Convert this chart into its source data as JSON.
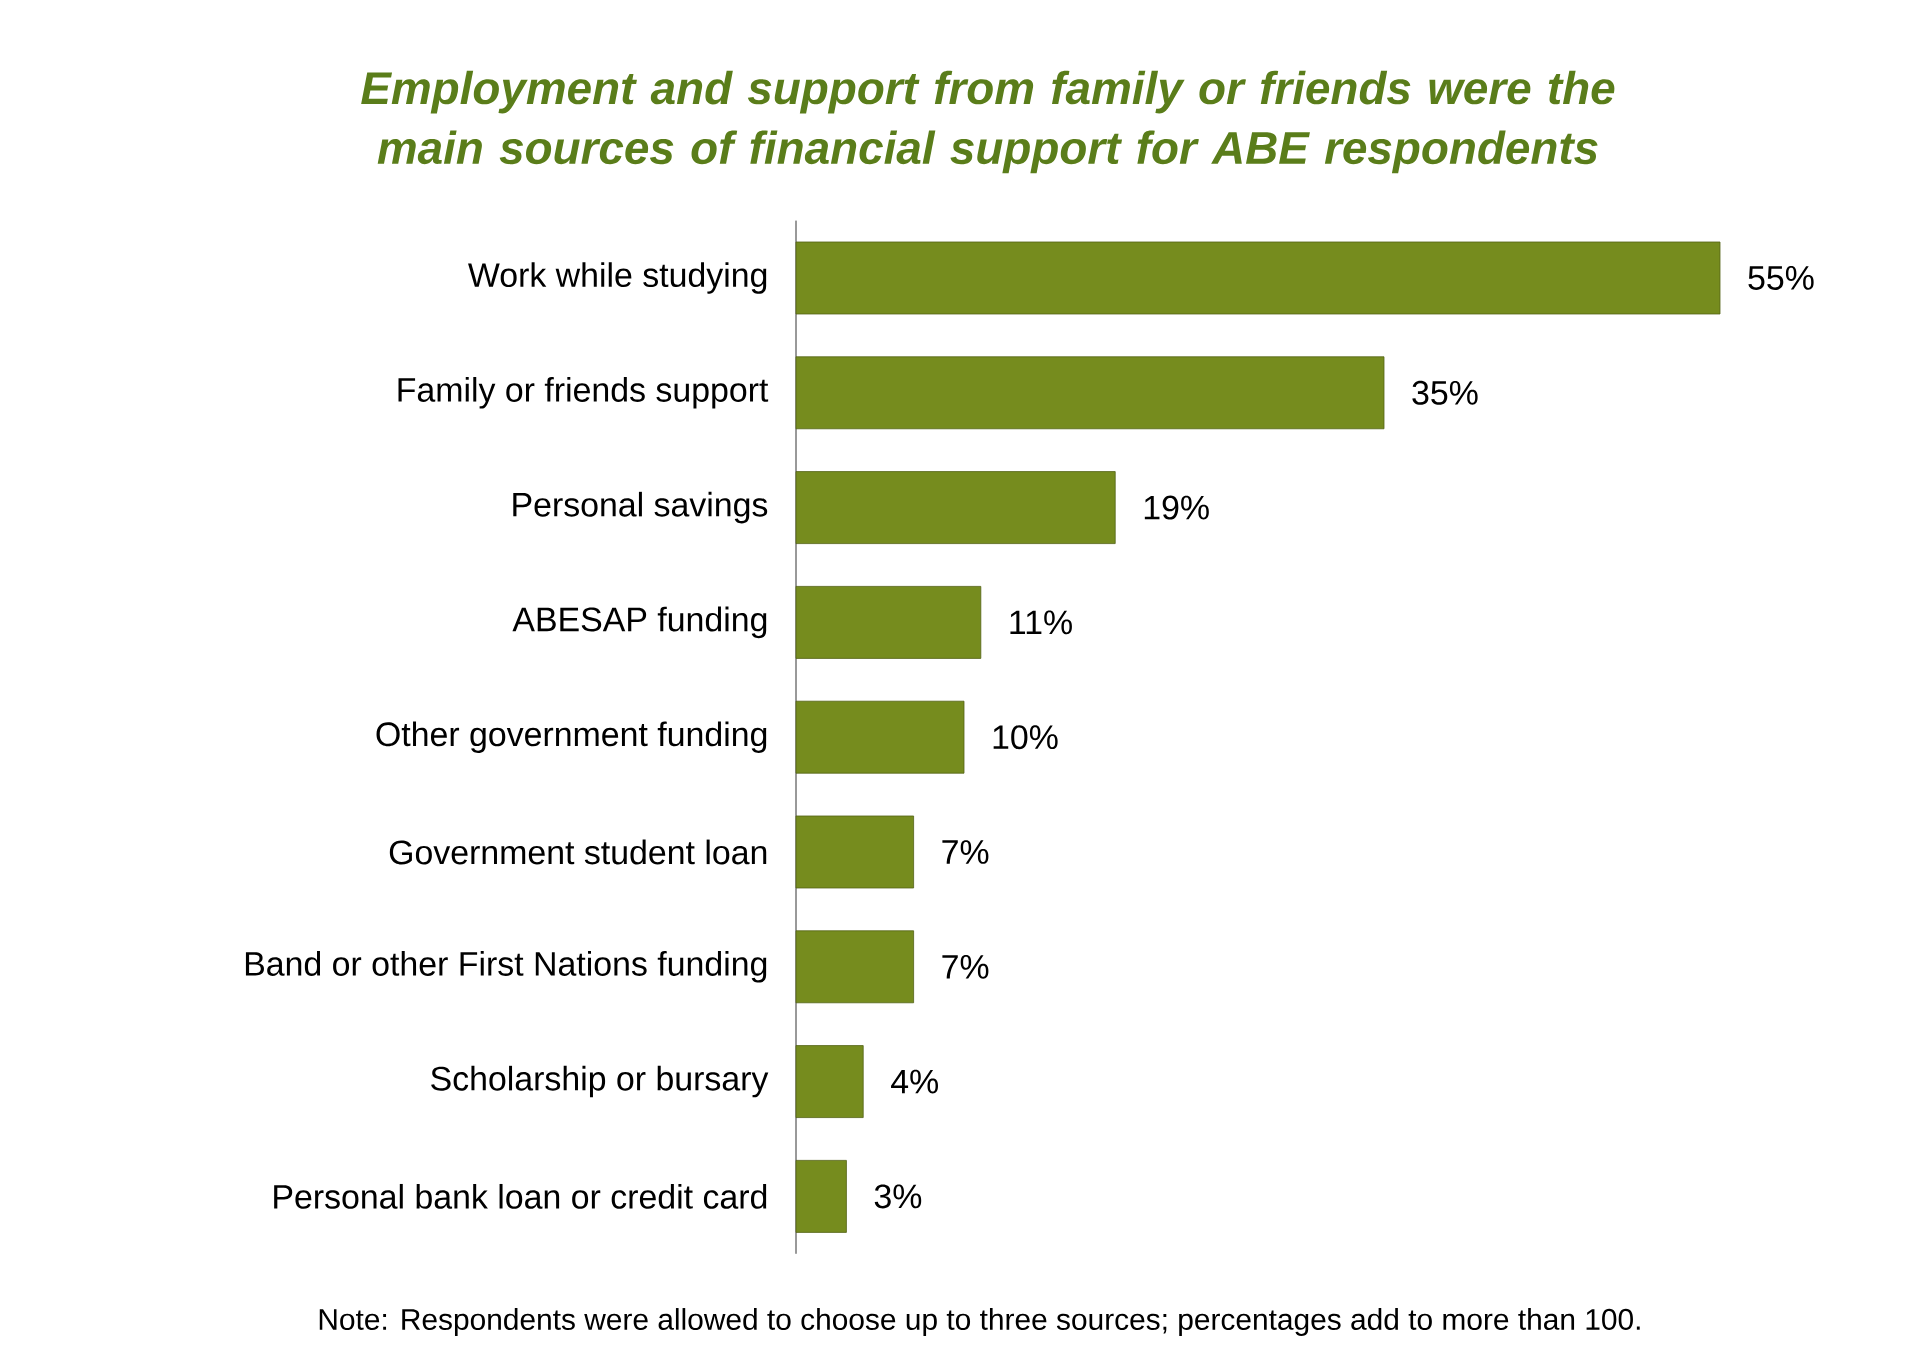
{
  "chart_data": {
    "type": "bar",
    "orientation": "horizontal",
    "title": "Employment and support from family or friends were the main sources of financial support for ABE respondents",
    "categories": [
      "Work while studying",
      "Family or friends support",
      "Personal savings",
      "ABESAP funding",
      "Other government funding",
      "Government student loan",
      "Band or other First Nations funding",
      "Scholarship or bursary",
      "Personal bank loan or credit card"
    ],
    "values": [
      55,
      35,
      19,
      11,
      10,
      7,
      7,
      4,
      3
    ],
    "value_labels": [
      "55%",
      "35%",
      "19%",
      "11%",
      "10%",
      "7%",
      "7%",
      "4%",
      "3%"
    ],
    "color": "#768c1e",
    "tick_labels": "y",
    "annotations": [
      "Note: Respondents were allowed to choose up to three sources; percentages add to more than 100."
    ]
  }
}
